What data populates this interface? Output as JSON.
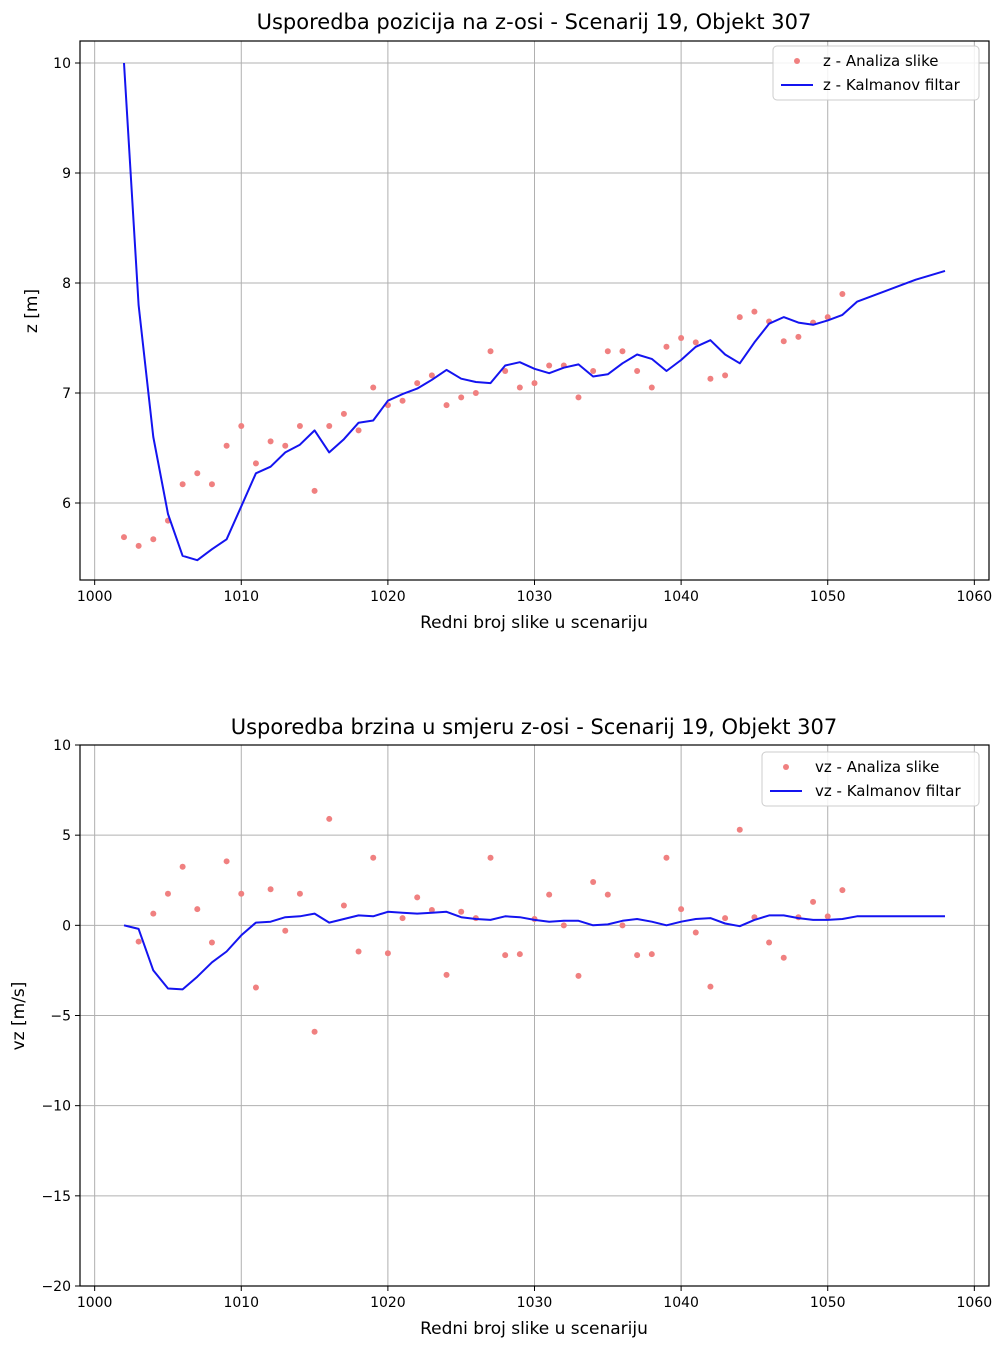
{
  "chart_data": [
    {
      "type": "line",
      "title": "Usporedba pozicija na z-osi - Scenarij 19, Objekt 307",
      "xlabel": "Redni broj slike u scenariju",
      "ylabel": "z [m]",
      "xlim": [
        999,
        1061
      ],
      "ylim": [
        5.3,
        10.2
      ],
      "xticks": [
        1000,
        1010,
        1020,
        1030,
        1040,
        1050,
        1060
      ],
      "yticks": [
        6,
        7,
        8,
        9,
        10
      ],
      "grid": true,
      "legend_position": "top-right",
      "colors": {
        "scatter": "#f08080",
        "line": "#1414f0"
      },
      "series": [
        {
          "name": "z - Analiza slike",
          "kind": "scatter",
          "x": [
            1002,
            1003,
            1004,
            1005,
            1006,
            1007,
            1008,
            1009,
            1010,
            1011,
            1012,
            1013,
            1014,
            1015,
            1016,
            1017,
            1018,
            1019,
            1020,
            1021,
            1022,
            1023,
            1024,
            1025,
            1026,
            1027,
            1028,
            1029,
            1030,
            1031,
            1032,
            1033,
            1034,
            1035,
            1036,
            1037,
            1038,
            1039,
            1040,
            1041,
            1042,
            1043,
            1044,
            1045,
            1046,
            1047,
            1048,
            1049,
            1050,
            1051
          ],
          "y": [
            5.69,
            5.61,
            5.67,
            5.84,
            6.17,
            6.27,
            6.17,
            6.52,
            6.7,
            6.36,
            6.56,
            6.52,
            6.7,
            6.11,
            6.7,
            6.81,
            6.66,
            7.05,
            6.89,
            6.93,
            7.09,
            7.16,
            6.89,
            6.96,
            7.0,
            7.38,
            7.2,
            7.05,
            7.09,
            7.25,
            7.25,
            6.96,
            7.2,
            7.38,
            7.38,
            7.2,
            7.05,
            7.42,
            7.5,
            7.46,
            7.13,
            7.16,
            7.69,
            7.74,
            7.65,
            7.47,
            7.51,
            7.64,
            7.69,
            7.9
          ]
        },
        {
          "name": "z - Kalmanov filtar",
          "kind": "line",
          "x": [
            1002,
            1003,
            1004,
            1005,
            1006,
            1007,
            1008,
            1009,
            1010,
            1011,
            1012,
            1013,
            1014,
            1015,
            1016,
            1017,
            1018,
            1019,
            1020,
            1021,
            1022,
            1023,
            1024,
            1025,
            1026,
            1027,
            1028,
            1029,
            1030,
            1031,
            1032,
            1033,
            1034,
            1035,
            1036,
            1037,
            1038,
            1039,
            1040,
            1041,
            1042,
            1043,
            1044,
            1045,
            1046,
            1047,
            1048,
            1049,
            1050,
            1051,
            1052,
            1053,
            1054,
            1055,
            1056,
            1057,
            1058
          ],
          "y": [
            10.0,
            7.8,
            6.6,
            5.9,
            5.52,
            5.48,
            5.58,
            5.67,
            5.97,
            6.27,
            6.33,
            6.46,
            6.53,
            6.66,
            6.46,
            6.58,
            6.73,
            6.75,
            6.93,
            6.99,
            7.04,
            7.12,
            7.21,
            7.13,
            7.1,
            7.09,
            7.25,
            7.28,
            7.22,
            7.18,
            7.23,
            7.26,
            7.15,
            7.17,
            7.27,
            7.35,
            7.31,
            7.2,
            7.3,
            7.42,
            7.48,
            7.35,
            7.27,
            7.46,
            7.63,
            7.69,
            7.64,
            7.62,
            7.66,
            7.71,
            7.83,
            7.88,
            7.93,
            7.98,
            8.03,
            8.07,
            8.11
          ]
        }
      ]
    },
    {
      "type": "line",
      "title": "Usporedba brzina u smjeru z-osi - Scenarij 19, Objekt 307",
      "xlabel": "Redni broj slike u scenariju",
      "ylabel": "vz [m/s]",
      "xlim": [
        999,
        1061
      ],
      "ylim": [
        -20,
        10
      ],
      "xticks": [
        1000,
        1010,
        1020,
        1030,
        1040,
        1050,
        1060
      ],
      "yticks": [
        -20,
        -15,
        -10,
        -5,
        0,
        5,
        10
      ],
      "grid": true,
      "legend_position": "top-right",
      "colors": {
        "scatter": "#f08080",
        "line": "#1414f0"
      },
      "series": [
        {
          "name": "vz - Analiza slike",
          "kind": "scatter",
          "x": [
            1003,
            1004,
            1005,
            1006,
            1007,
            1008,
            1009,
            1010,
            1011,
            1012,
            1013,
            1014,
            1015,
            1016,
            1017,
            1018,
            1019,
            1020,
            1021,
            1022,
            1023,
            1024,
            1025,
            1026,
            1027,
            1028,
            1029,
            1030,
            1031,
            1032,
            1033,
            1034,
            1035,
            1036,
            1037,
            1038,
            1039,
            1040,
            1041,
            1042,
            1043,
            1044,
            1045,
            1046,
            1047,
            1048,
            1049,
            1050,
            1051
          ],
          "y": [
            -0.9,
            0.65,
            1.75,
            3.25,
            0.9,
            -0.95,
            3.55,
            1.75,
            -3.45,
            2.0,
            -0.3,
            1.75,
            -5.9,
            5.9,
            1.1,
            -1.45,
            3.75,
            -1.55,
            0.4,
            1.55,
            0.85,
            -2.75,
            0.75,
            0.4,
            3.75,
            -1.65,
            -1.6,
            0.35,
            1.7,
            0.0,
            -2.8,
            2.4,
            1.7,
            0.0,
            -1.65,
            -1.6,
            3.75,
            0.9,
            -0.4,
            -3.4,
            0.4,
            5.3,
            0.45,
            -0.95,
            -1.8,
            0.45,
            1.3,
            0.5,
            1.95
          ]
        },
        {
          "name": "vz - Kalmanov filtar",
          "kind": "line",
          "x": [
            1002,
            1003,
            1004,
            1005,
            1006,
            1007,
            1008,
            1009,
            1010,
            1011,
            1012,
            1013,
            1014,
            1015,
            1016,
            1017,
            1018,
            1019,
            1020,
            1021,
            1022,
            1023,
            1024,
            1025,
            1026,
            1027,
            1028,
            1029,
            1030,
            1031,
            1032,
            1033,
            1034,
            1035,
            1036,
            1037,
            1038,
            1039,
            1040,
            1041,
            1042,
            1043,
            1044,
            1045,
            1046,
            1047,
            1048,
            1049,
            1050,
            1051,
            1052,
            1053,
            1054,
            1055,
            1056,
            1057,
            1058
          ],
          "y": [
            0.0,
            -0.2,
            -2.5,
            -3.5,
            -3.55,
            -2.85,
            -2.05,
            -1.45,
            -0.55,
            0.15,
            0.2,
            0.45,
            0.5,
            0.65,
            0.15,
            0.35,
            0.55,
            0.5,
            0.75,
            0.7,
            0.65,
            0.7,
            0.75,
            0.45,
            0.35,
            0.3,
            0.5,
            0.45,
            0.3,
            0.2,
            0.25,
            0.25,
            0.0,
            0.05,
            0.25,
            0.35,
            0.2,
            0.0,
            0.2,
            0.35,
            0.4,
            0.1,
            -0.05,
            0.3,
            0.55,
            0.55,
            0.4,
            0.3,
            0.3,
            0.35,
            0.5,
            0.5,
            0.5,
            0.5,
            0.5,
            0.5,
            0.5
          ]
        }
      ]
    }
  ]
}
